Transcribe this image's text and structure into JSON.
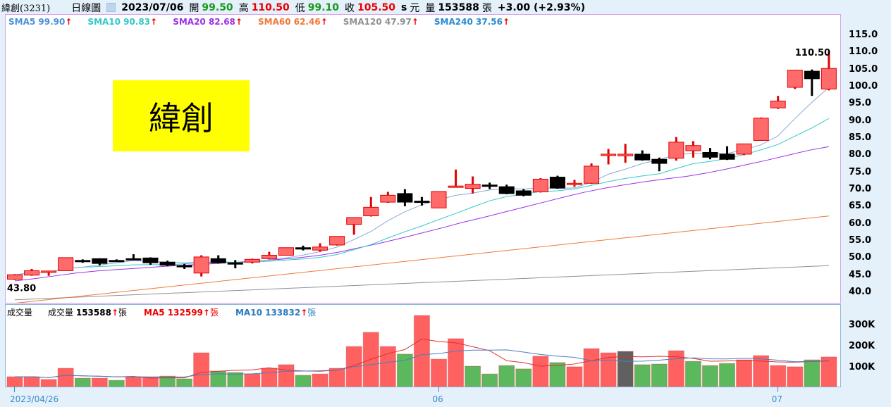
{
  "header": {
    "name": "緯創(3231)",
    "chart_type": "日線圖",
    "date": "2023/07/06",
    "open_label": "開",
    "open": "99.50",
    "high_label": "高",
    "high": "110.50",
    "low_label": "低",
    "low": "99.10",
    "close_label": "收",
    "close": "105.50",
    "s": "s",
    "unit": "元",
    "vol_label": "量",
    "volume": "153588",
    "vol_unit": "張",
    "change": "+3.00 (+2.93%)"
  },
  "legend": [
    {
      "label": "SMA5 99.90",
      "color": "#4a90d9"
    },
    {
      "label": "SMA10 90.83",
      "color": "#33c8c8"
    },
    {
      "label": "SMA20 82.68",
      "color": "#9b30e8"
    },
    {
      "label": "SMA60 62.46",
      "color": "#f07838"
    },
    {
      "label": "SMA120 47.97",
      "color": "#909090"
    },
    {
      "label": "SMA240 37.56",
      "color": "#2a8ad0"
    }
  ],
  "arrow": "↑",
  "stamp": "緯創",
  "vol_legend": {
    "title": "成交量",
    "vol": "成交量",
    "vol_val": "153588",
    "unit": "張",
    "ma5": "MA5 132599",
    "ma10": "MA10 133832"
  },
  "chart_data": {
    "type": "candlestick",
    "ylim": [
      38,
      117
    ],
    "yticks": [
      "115.0",
      "110.0",
      "105.0",
      "100.0",
      "95.0",
      "90.0",
      "85.0",
      "80.0",
      "75.0",
      "70.0",
      "65.0",
      "60.0",
      "55.0",
      "50.0",
      "45.0",
      "40.0"
    ],
    "min_label": "43.80",
    "max_label": "110.50",
    "ohlc": [
      [
        44,
        45.5,
        43.8,
        45.3
      ],
      [
        45.2,
        47,
        45,
        46.5
      ],
      [
        46.2,
        46.5,
        45,
        46.4
      ],
      [
        46.5,
        50.3,
        46.5,
        50.3
      ],
      [
        49.5,
        49.8,
        48.8,
        49.1
      ],
      [
        50,
        50.1,
        48,
        48.6
      ],
      [
        49.5,
        49.8,
        49.2,
        49.4
      ],
      [
        50,
        51.3,
        49.9,
        49.9
      ],
      [
        50.2,
        50.4,
        48.2,
        48.8
      ],
      [
        49,
        49.4,
        47.8,
        48.1
      ],
      [
        48,
        48.5,
        47,
        47.7
      ],
      [
        45.8,
        51,
        44.8,
        50.5
      ],
      [
        50,
        51,
        48.6,
        48.8
      ],
      [
        48.8,
        49.6,
        47.2,
        48.4
      ],
      [
        49,
        50,
        48.6,
        49.8
      ],
      [
        50,
        52,
        49.8,
        51
      ],
      [
        51,
        53.2,
        50.9,
        53.2
      ],
      [
        53.2,
        53.8,
        52.4,
        52.8
      ],
      [
        52.5,
        54.5,
        52,
        53.4
      ],
      [
        54,
        56.5,
        53.8,
        56.5
      ],
      [
        60,
        62,
        57,
        62
      ],
      [
        62.5,
        68,
        62.3,
        65
      ],
      [
        66.5,
        69.5,
        66.3,
        68.5
      ],
      [
        69,
        70.3,
        65.3,
        66.5
      ],
      [
        66.8,
        68,
        65.5,
        66.6
      ],
      [
        64.8,
        69.6,
        64.8,
        69.6
      ],
      [
        71.2,
        76,
        70.8,
        71.2
      ],
      [
        70.5,
        74,
        69,
        71.7
      ],
      [
        71.5,
        72.2,
        70.3,
        71.2
      ],
      [
        71,
        71.6,
        68.8,
        69
      ],
      [
        69.8,
        70.3,
        68.2,
        68.5
      ],
      [
        69.5,
        73.5,
        69.3,
        73.2
      ],
      [
        73.8,
        74.2,
        70.4,
        70.6
      ],
      [
        71.8,
        73,
        71,
        72
      ],
      [
        72,
        77.8,
        71.8,
        77
      ],
      [
        80.5,
        82,
        77.5,
        80.5
      ],
      [
        80,
        83.5,
        78,
        80.5
      ],
      [
        80.5,
        81.6,
        78.6,
        78.8
      ],
      [
        79,
        79.5,
        75.5,
        77.8
      ],
      [
        79.3,
        85.5,
        78.6,
        84
      ],
      [
        81.5,
        84.3,
        79.5,
        83
      ],
      [
        81,
        82.3,
        79,
        79.6
      ],
      [
        80.5,
        82.8,
        78.8,
        79
      ],
      [
        80.5,
        83.5,
        80.2,
        83.5
      ],
      [
        84.5,
        91.2,
        84.4,
        91
      ],
      [
        94,
        97.5,
        93.7,
        96
      ],
      [
        100,
        105,
        99.5,
        105
      ],
      [
        104.7,
        105.2,
        97.5,
        102.5
      ],
      [
        99.5,
        110.5,
        99.1,
        105.5
      ]
    ],
    "sma20": [
      43.5,
      44.2,
      45,
      45.8,
      46.4,
      46.8,
      47.2,
      47.6,
      48,
      48.3,
      48.6,
      49,
      49.4,
      49.8,
      50.3,
      51,
      52,
      53.3,
      54.6,
      56,
      57.5,
      59,
      60.6,
      62,
      63.5,
      65,
      66.5,
      68,
      69.4,
      70.6,
      71.6,
      72.5,
      73.3,
      74,
      75,
      76.2,
      77.5,
      78.8,
      80.2,
      81.6,
      82.7
    ],
    "sma60": [
      37,
      62.46
    ],
    "sma120": [
      38,
      47.97
    ],
    "volume": {
      "ylim": [
        0,
        370000
      ],
      "yticks": [
        "300K",
        "200K",
        "100K"
      ],
      "values": [
        60000,
        60000,
        47000,
        100000,
        53000,
        53000,
        43000,
        60000,
        57000,
        63000,
        50000,
        173000,
        87000,
        80000,
        73000,
        100000,
        117000,
        67000,
        73000,
        100000,
        203000,
        270000,
        203000,
        167000,
        350000,
        143000,
        240000,
        110000,
        73000,
        113000,
        97000,
        157000,
        127000,
        107000,
        193000,
        173000,
        180000,
        117000,
        120000,
        183000,
        133000,
        113000,
        123000,
        140000,
        160000,
        113000,
        107000,
        140000,
        153588
      ],
      "colors": [
        "r",
        "r",
        "r",
        "r",
        "g",
        "r",
        "g",
        "r",
        "r",
        "g",
        "g",
        "r",
        "g",
        "g",
        "r",
        "r",
        "r",
        "g",
        "r",
        "r",
        "r",
        "r",
        "r",
        "g",
        "r",
        "r",
        "r",
        "g",
        "g",
        "g",
        "g",
        "r",
        "g",
        "r",
        "r",
        "r",
        "k",
        "g",
        "g",
        "r",
        "g",
        "g",
        "g",
        "r",
        "r",
        "r",
        "r",
        "g",
        "r"
      ]
    },
    "xticks": [
      {
        "label": "2023/04/26",
        "index": 0
      },
      {
        "label": "06",
        "index": 25
      },
      {
        "label": "07",
        "index": 45
      }
    ]
  },
  "colors": {
    "up": "#ff6b6b",
    "up_edge": "#e00000",
    "down": "#000000",
    "vol_up": "#ff6060",
    "vol_down": "#5cb85c",
    "vol_dark": "#606060"
  }
}
